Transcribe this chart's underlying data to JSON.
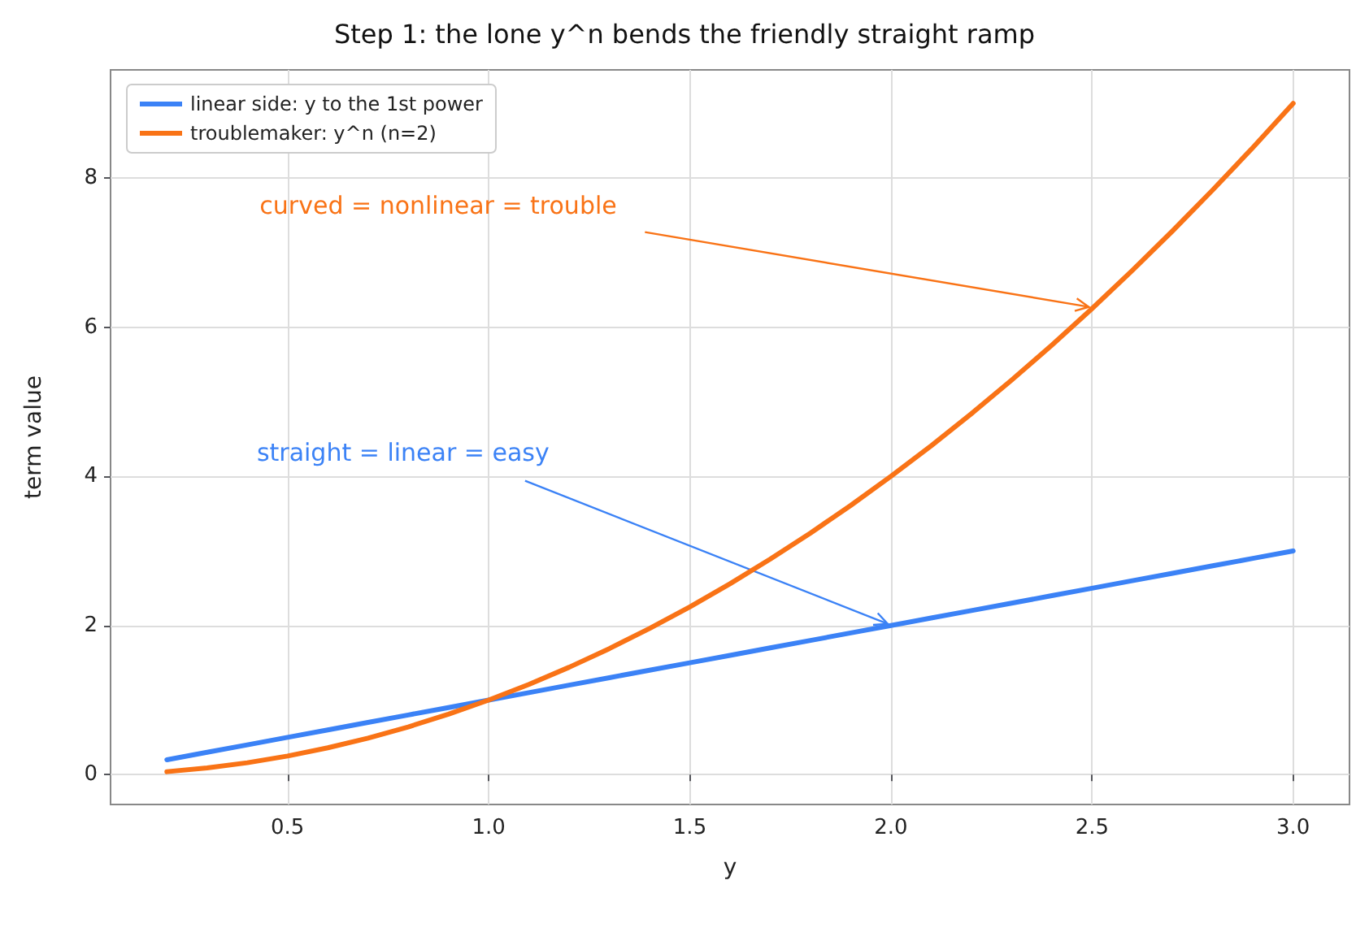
{
  "chart_data": {
    "type": "line",
    "title": "Step 1: the lone y^n bends the friendly straight ramp",
    "xlabel": "y",
    "ylabel": "term value",
    "x": [
      0.2,
      0.3,
      0.4,
      0.5,
      0.6,
      0.7,
      0.8,
      0.9,
      1.0,
      1.1,
      1.2,
      1.3,
      1.4,
      1.5,
      1.6,
      1.7,
      1.8,
      1.9,
      2.0,
      2.1,
      2.2,
      2.3,
      2.4,
      2.5,
      2.6,
      2.7,
      2.8,
      2.9,
      3.0
    ],
    "series": [
      {
        "name": "linear side: y to the 1st power",
        "color": "#3b82f6",
        "values": [
          0.2,
          0.3,
          0.4,
          0.5,
          0.6,
          0.7,
          0.8,
          0.9,
          1.0,
          1.1,
          1.2,
          1.3,
          1.4,
          1.5,
          1.6,
          1.7,
          1.8,
          1.9,
          2.0,
          2.1,
          2.2,
          2.3,
          2.4,
          2.5,
          2.6,
          2.7,
          2.8,
          2.9,
          3.0
        ]
      },
      {
        "name": "troublemaker: y^n (n=2)",
        "color": "#f97316",
        "values": [
          0.04,
          0.09,
          0.16,
          0.25,
          0.36,
          0.49,
          0.64,
          0.81,
          1.0,
          1.21,
          1.44,
          1.69,
          1.96,
          2.25,
          2.56,
          2.89,
          3.24,
          3.61,
          4.0,
          4.41,
          4.84,
          5.29,
          5.76,
          6.25,
          6.76,
          7.29,
          7.84,
          8.41,
          9.0
        ]
      }
    ],
    "annotations": [
      {
        "text": "curved = nonlinear = trouble",
        "x": 2.5,
        "y": 6.25
      },
      {
        "text": "straight = linear = easy",
        "x": 2.0,
        "y": 2.0
      }
    ],
    "xlim": [
      0.06,
      3.14
    ],
    "xticks": [
      0.5,
      {
        "value": 1,
        "label": "1.0"
      },
      1.5,
      {
        "value": 2,
        "label": "2.0"
      },
      2.5,
      {
        "value": 3,
        "label": "3.0"
      }
    ],
    "ylim": [
      -0.4,
      9.45
    ],
    "yticks": [
      0,
      2,
      4,
      6,
      8
    ],
    "grid": true,
    "legend": "top left",
    "marker": "none",
    "line_style": "solid"
  }
}
